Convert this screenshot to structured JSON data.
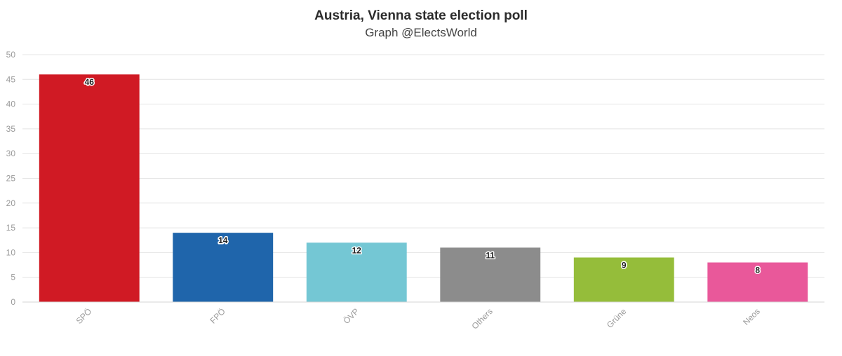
{
  "chart_data": {
    "type": "bar",
    "title": "Austria, Vienna state election poll",
    "subtitle": "Graph @ElectsWorld",
    "categories": [
      "SPÖ",
      "FPÖ",
      "ÖVP",
      "Others",
      "Grüne",
      "Neos"
    ],
    "values": [
      46,
      14,
      12,
      11,
      9,
      8
    ],
    "colors": [
      "#d01a24",
      "#1f65ab",
      "#74c7d4",
      "#8c8c8c",
      "#95bd3a",
      "#e9589a"
    ],
    "ylim": [
      0,
      50
    ],
    "yticks": [
      0,
      5,
      10,
      15,
      20,
      25,
      30,
      35,
      40,
      45,
      50
    ],
    "xlabel": "",
    "ylabel": "",
    "grid": true,
    "legend": "none"
  }
}
